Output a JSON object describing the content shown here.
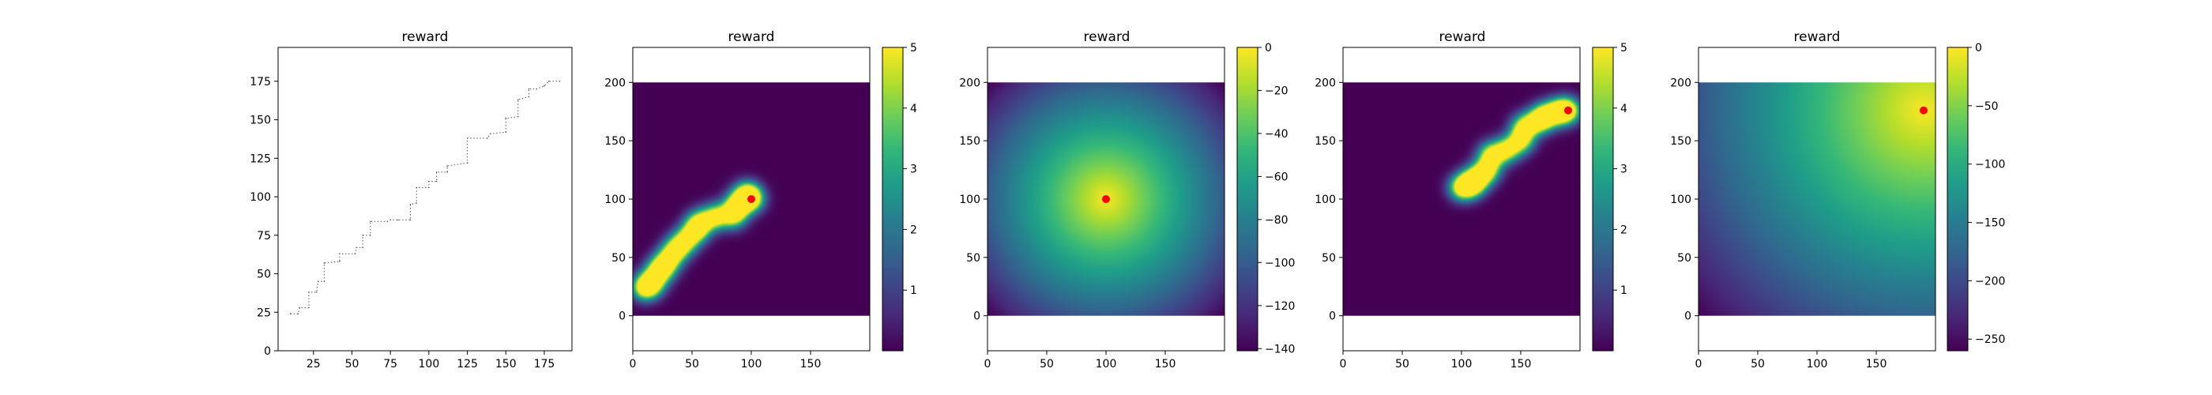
{
  "colors": {
    "viridis": [
      "#440154",
      "#482878",
      "#3e4989",
      "#31688e",
      "#26828e",
      "#1f9e89",
      "#35b779",
      "#6ece58",
      "#b5de2b",
      "#fde725"
    ],
    "marker": "#ff0000",
    "path": "#555555"
  },
  "chart_data": [
    {
      "type": "line",
      "title": "reward",
      "xlabel": "",
      "ylabel": "",
      "xlim": [
        2,
        193
      ],
      "ylim": [
        0,
        197
      ],
      "xticks": [
        "25",
        "50",
        "75",
        "100",
        "125",
        "150",
        "175"
      ],
      "yticks": [
        "0",
        "25",
        "50",
        "75",
        "100",
        "125",
        "150",
        "175"
      ],
      "series": [
        {
          "style": "dotted",
          "x": [
            10,
            15,
            16,
            22,
            22,
            27,
            28,
            32,
            32,
            42,
            42,
            52,
            53,
            57,
            57,
            62,
            62,
            73,
            75,
            80,
            88,
            88,
            92,
            92,
            100,
            100,
            105,
            105,
            112,
            112,
            125,
            125,
            138,
            140,
            150,
            150,
            158,
            158,
            165,
            165,
            170,
            175,
            178,
            185
          ],
          "y": [
            24,
            24,
            28,
            28,
            38,
            38,
            45,
            45,
            57,
            58,
            63,
            63,
            67,
            67,
            75,
            75,
            84,
            84,
            85,
            85,
            85,
            95,
            96,
            106,
            106,
            110,
            110,
            116,
            116,
            120,
            122,
            138,
            138,
            141,
            142,
            151,
            152,
            163,
            165,
            170,
            170,
            172,
            175,
            175
          ]
        }
      ]
    },
    {
      "type": "heatmap",
      "title": "reward",
      "xlabel": "",
      "ylabel": "",
      "xlim": [
        0,
        200
      ],
      "ylim": [
        -30,
        230
      ],
      "xticks": [
        "0",
        "50",
        "100",
        "150"
      ],
      "yticks": [
        "0",
        "50",
        "100",
        "150",
        "200"
      ],
      "colorbar": {
        "min": 0,
        "max": 5,
        "ticks": [
          "1",
          "2",
          "3",
          "4",
          "5"
        ]
      },
      "field": "gaussian-bumps",
      "peaks": [
        [
          10,
          24
        ],
        [
          16,
          28
        ],
        [
          22,
          38
        ],
        [
          28,
          45
        ],
        [
          35,
          55
        ],
        [
          43,
          63
        ],
        [
          52,
          72
        ],
        [
          57,
          80
        ],
        [
          70,
          85
        ],
        [
          85,
          86
        ],
        [
          88,
          95
        ],
        [
          96,
          104
        ],
        [
          100,
          100
        ]
      ],
      "marker": [
        100,
        100
      ]
    },
    {
      "type": "heatmap",
      "title": "reward",
      "xlabel": "",
      "ylabel": "",
      "xlim": [
        0,
        200
      ],
      "ylim": [
        -30,
        230
      ],
      "xticks": [
        "0",
        "50",
        "100",
        "150"
      ],
      "yticks": [
        "0",
        "50",
        "100",
        "150",
        "200"
      ],
      "colorbar": {
        "min": -141,
        "max": 0,
        "ticks": [
          "0",
          "−20",
          "−40",
          "−60",
          "−80",
          "−100",
          "−120",
          "−140"
        ]
      },
      "field": "negative-distance",
      "center": [
        100,
        100
      ],
      "marker": [
        100,
        100
      ]
    },
    {
      "type": "heatmap",
      "title": "reward",
      "xlabel": "",
      "ylabel": "",
      "xlim": [
        0,
        200
      ],
      "ylim": [
        -30,
        230
      ],
      "xticks": [
        "0",
        "50",
        "100",
        "150"
      ],
      "yticks": [
        "0",
        "50",
        "100",
        "150",
        "200"
      ],
      "colorbar": {
        "min": 0,
        "max": 5,
        "ticks": [
          "1",
          "2",
          "3",
          "4",
          "5"
        ]
      },
      "field": "gaussian-bumps",
      "peaks": [
        [
          100,
          110
        ],
        [
          108,
          112
        ],
        [
          113,
          118
        ],
        [
          122,
          125
        ],
        [
          125,
          138
        ],
        [
          138,
          142
        ],
        [
          150,
          150
        ],
        [
          153,
          162
        ],
        [
          165,
          167
        ],
        [
          172,
          172
        ],
        [
          183,
          175
        ],
        [
          190,
          176
        ]
      ],
      "marker": [
        190,
        176
      ]
    },
    {
      "type": "heatmap",
      "title": "reward",
      "xlabel": "",
      "ylabel": "",
      "xlim": [
        0,
        200
      ],
      "ylim": [
        -30,
        230
      ],
      "xticks": [
        "0",
        "50",
        "100",
        "150"
      ],
      "yticks": [
        "0",
        "50",
        "100",
        "150",
        "200"
      ],
      "colorbar": {
        "min": -260,
        "max": 0,
        "ticks": [
          "0",
          "−50",
          "−100",
          "−150",
          "−200",
          "−250"
        ]
      },
      "field": "negative-distance",
      "center": [
        190,
        176
      ],
      "marker": [
        190,
        176
      ]
    }
  ]
}
